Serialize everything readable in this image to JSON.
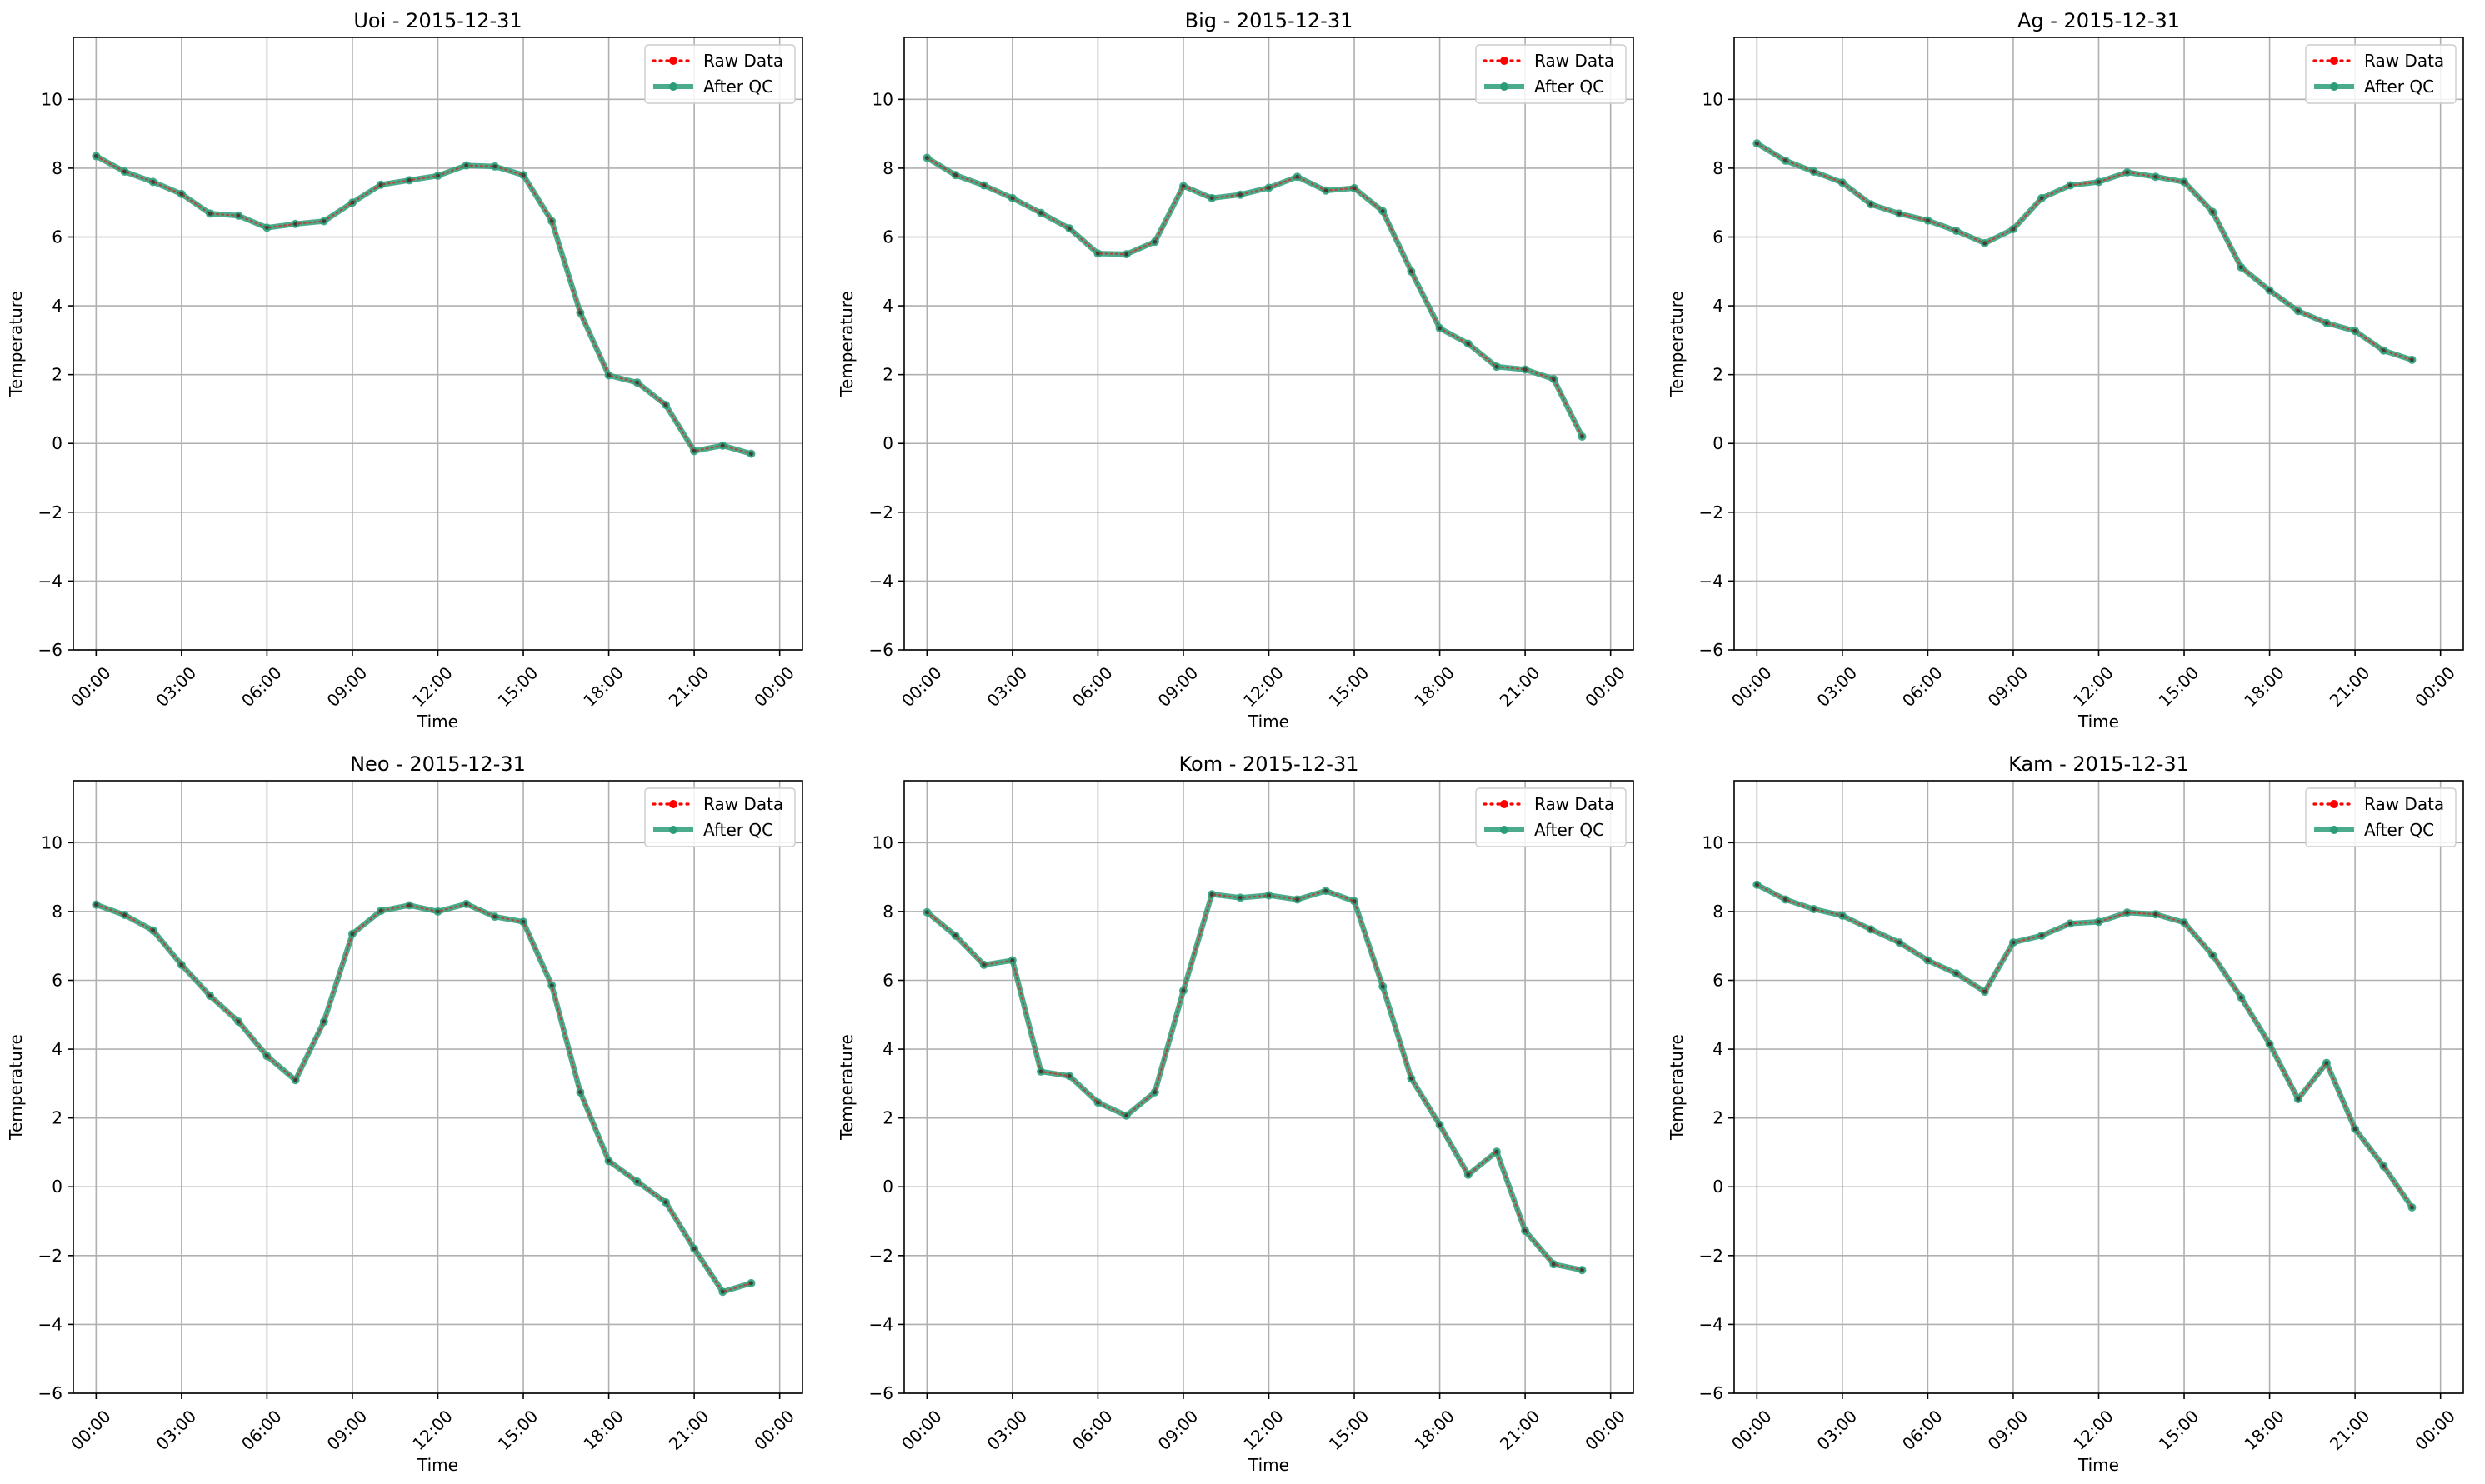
{
  "figure": {
    "xlabel": "Time",
    "ylabel": "Temperature",
    "x_tick_labels": [
      "00:00",
      "03:00",
      "06:00",
      "09:00",
      "12:00",
      "15:00",
      "18:00",
      "21:00",
      "00:00"
    ],
    "y_ticks": [
      -6,
      -4,
      -2,
      0,
      2,
      4,
      6,
      8,
      10
    ],
    "legend": [
      "Raw Data",
      "After QC"
    ],
    "colors": {
      "raw": "#ff0000",
      "qc": "#2a9d78",
      "grid": "#b0b0b0"
    }
  },
  "chart_data": [
    {
      "type": "line",
      "title": "Uoi - 2015-12-31",
      "xlabel": "Time",
      "ylabel": "Temperature",
      "x": [
        "00:00",
        "01:00",
        "02:00",
        "03:00",
        "04:00",
        "05:00",
        "06:00",
        "07:00",
        "08:00",
        "09:00",
        "10:00",
        "11:00",
        "12:00",
        "13:00",
        "14:00",
        "15:00",
        "16:00",
        "17:00",
        "18:00",
        "19:00",
        "20:00",
        "21:00",
        "22:00",
        "23:00"
      ],
      "ylim": [
        -6,
        11.8
      ],
      "grid": true,
      "legend_position": "top-right",
      "series": [
        {
          "name": "Raw Data",
          "values": [
            8.35,
            7.9,
            7.6,
            7.25,
            6.68,
            6.62,
            6.27,
            6.38,
            6.46,
            7.0,
            7.52,
            7.65,
            7.78,
            8.08,
            8.05,
            7.8,
            6.46,
            3.8,
            1.98,
            1.77,
            1.12,
            -0.22,
            -0.06,
            -0.3
          ]
        },
        {
          "name": "After QC",
          "values": [
            8.35,
            7.9,
            7.6,
            7.25,
            6.68,
            6.62,
            6.27,
            6.38,
            6.46,
            7.0,
            7.52,
            7.65,
            7.78,
            8.08,
            8.05,
            7.8,
            6.46,
            3.8,
            1.98,
            1.77,
            1.12,
            -0.22,
            -0.06,
            -0.3
          ]
        }
      ]
    },
    {
      "type": "line",
      "title": "Big - 2015-12-31",
      "xlabel": "Time",
      "ylabel": "Temperature",
      "x": [
        "00:00",
        "01:00",
        "02:00",
        "03:00",
        "04:00",
        "05:00",
        "06:00",
        "07:00",
        "08:00",
        "09:00",
        "10:00",
        "11:00",
        "12:00",
        "13:00",
        "14:00",
        "15:00",
        "16:00",
        "17:00",
        "18:00",
        "19:00",
        "20:00",
        "21:00",
        "22:00",
        "23:00"
      ],
      "ylim": [
        -6,
        11.8
      ],
      "grid": true,
      "legend_position": "top-right",
      "series": [
        {
          "name": "Raw Data",
          "values": [
            8.3,
            7.8,
            7.5,
            7.13,
            6.7,
            6.25,
            5.52,
            5.5,
            5.86,
            7.48,
            7.13,
            7.23,
            7.43,
            7.75,
            7.35,
            7.42,
            6.75,
            5.0,
            3.35,
            2.9,
            2.23,
            2.15,
            1.87,
            0.2
          ]
        },
        {
          "name": "After QC",
          "values": [
            8.3,
            7.8,
            7.5,
            7.13,
            6.7,
            6.25,
            5.52,
            5.5,
            5.86,
            7.48,
            7.13,
            7.23,
            7.43,
            7.75,
            7.35,
            7.42,
            6.75,
            5.0,
            3.35,
            2.9,
            2.23,
            2.15,
            1.87,
            0.2
          ]
        }
      ]
    },
    {
      "type": "line",
      "title": "Ag - 2015-12-31",
      "xlabel": "Time",
      "ylabel": "Temperature",
      "x": [
        "00:00",
        "01:00",
        "02:00",
        "03:00",
        "04:00",
        "05:00",
        "06:00",
        "07:00",
        "08:00",
        "09:00",
        "10:00",
        "11:00",
        "12:00",
        "13:00",
        "14:00",
        "15:00",
        "16:00",
        "17:00",
        "18:00",
        "19:00",
        "20:00",
        "21:00",
        "22:00",
        "23:00"
      ],
      "ylim": [
        -6,
        11.8
      ],
      "grid": true,
      "legend_position": "top-right",
      "series": [
        {
          "name": "Raw Data",
          "values": [
            8.72,
            8.22,
            7.9,
            7.58,
            6.95,
            6.68,
            6.48,
            6.18,
            5.82,
            6.23,
            7.13,
            7.5,
            7.6,
            7.88,
            7.75,
            7.6,
            6.73,
            5.12,
            4.45,
            3.85,
            3.5,
            3.27,
            2.7,
            2.43
          ]
        },
        {
          "name": "After QC",
          "values": [
            8.72,
            8.22,
            7.9,
            7.58,
            6.95,
            6.68,
            6.48,
            6.18,
            5.82,
            6.23,
            7.13,
            7.5,
            7.6,
            7.88,
            7.75,
            7.6,
            6.73,
            5.12,
            4.45,
            3.85,
            3.5,
            3.27,
            2.7,
            2.43
          ]
        }
      ]
    },
    {
      "type": "line",
      "title": "Neo - 2015-12-31",
      "xlabel": "Time",
      "ylabel": "Temperature",
      "x": [
        "00:00",
        "01:00",
        "02:00",
        "03:00",
        "04:00",
        "05:00",
        "06:00",
        "07:00",
        "08:00",
        "09:00",
        "10:00",
        "11:00",
        "12:00",
        "13:00",
        "14:00",
        "15:00",
        "16:00",
        "17:00",
        "18:00",
        "19:00",
        "20:00",
        "21:00",
        "22:00",
        "23:00"
      ],
      "ylim": [
        -6,
        11.8
      ],
      "grid": true,
      "legend_position": "top-right",
      "series": [
        {
          "name": "Raw Data",
          "values": [
            8.2,
            7.9,
            7.45,
            6.45,
            5.55,
            4.8,
            3.8,
            3.1,
            4.8,
            7.35,
            8.02,
            8.18,
            8.0,
            8.22,
            7.85,
            7.7,
            5.85,
            2.75,
            0.75,
            0.15,
            -0.45,
            -1.8,
            -3.05,
            -2.8
          ]
        },
        {
          "name": "After QC",
          "values": [
            8.2,
            7.9,
            7.45,
            6.45,
            5.55,
            4.8,
            3.8,
            3.1,
            4.8,
            7.35,
            8.02,
            8.18,
            8.0,
            8.22,
            7.85,
            7.7,
            5.85,
            2.75,
            0.75,
            0.15,
            -0.45,
            -1.8,
            -3.05,
            -2.8
          ]
        }
      ]
    },
    {
      "type": "line",
      "title": "Kom - 2015-12-31",
      "xlabel": "Time",
      "ylabel": "Temperature",
      "x": [
        "00:00",
        "01:00",
        "02:00",
        "03:00",
        "04:00",
        "05:00",
        "06:00",
        "07:00",
        "08:00",
        "09:00",
        "10:00",
        "11:00",
        "12:00",
        "13:00",
        "14:00",
        "15:00",
        "16:00",
        "17:00",
        "18:00",
        "19:00",
        "20:00",
        "21:00",
        "22:00",
        "23:00"
      ],
      "ylim": [
        -6,
        11.8
      ],
      "grid": true,
      "legend_position": "top-right",
      "series": [
        {
          "name": "Raw Data",
          "values": [
            7.98,
            7.3,
            6.45,
            6.58,
            3.35,
            3.22,
            2.45,
            2.07,
            2.75,
            5.7,
            8.5,
            8.4,
            8.47,
            8.35,
            8.6,
            8.3,
            5.82,
            3.15,
            1.8,
            0.35,
            1.02,
            -1.28,
            -2.25,
            -2.42
          ]
        },
        {
          "name": "After QC",
          "values": [
            7.98,
            7.3,
            6.45,
            6.58,
            3.35,
            3.22,
            2.45,
            2.07,
            2.75,
            5.7,
            8.5,
            8.4,
            8.47,
            8.35,
            8.6,
            8.3,
            5.82,
            3.15,
            1.8,
            0.35,
            1.02,
            -1.28,
            -2.25,
            -2.42
          ]
        }
      ]
    },
    {
      "type": "line",
      "title": "Kam - 2015-12-31",
      "xlabel": "Time",
      "ylabel": "Temperature",
      "x": [
        "00:00",
        "01:00",
        "02:00",
        "03:00",
        "04:00",
        "05:00",
        "06:00",
        "07:00",
        "08:00",
        "09:00",
        "10:00",
        "11:00",
        "12:00",
        "13:00",
        "14:00",
        "15:00",
        "16:00",
        "17:00",
        "18:00",
        "19:00",
        "20:00",
        "21:00",
        "22:00",
        "23:00"
      ],
      "ylim": [
        -6,
        11.8
      ],
      "grid": true,
      "legend_position": "top-right",
      "series": [
        {
          "name": "Raw Data",
          "values": [
            8.78,
            8.35,
            8.07,
            7.88,
            7.48,
            7.1,
            6.58,
            6.2,
            5.67,
            7.1,
            7.3,
            7.65,
            7.7,
            7.97,
            7.92,
            7.68,
            6.73,
            5.5,
            4.15,
            2.55,
            3.6,
            1.68,
            0.6,
            -0.6
          ]
        },
        {
          "name": "After QC",
          "values": [
            8.78,
            8.35,
            8.07,
            7.88,
            7.48,
            7.1,
            6.58,
            6.2,
            5.67,
            7.1,
            7.3,
            7.65,
            7.7,
            7.97,
            7.92,
            7.68,
            6.73,
            5.5,
            4.15,
            2.55,
            3.6,
            1.68,
            0.6,
            -0.6
          ]
        }
      ]
    }
  ]
}
